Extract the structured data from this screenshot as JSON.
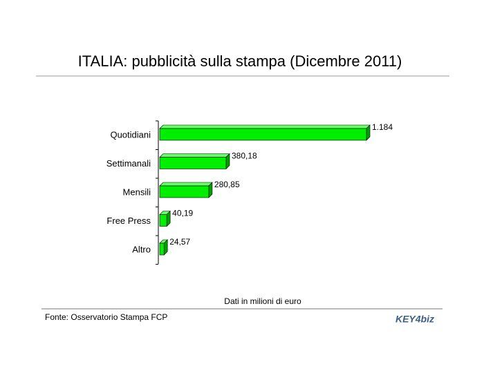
{
  "chart_data": {
    "type": "bar",
    "orientation": "horizontal",
    "title": "ITALIA: pubblicità sulla stampa (Dicembre 2011)",
    "categories": [
      "Quotidiani",
      "Settimanali",
      "Mensili",
      "Free Press",
      "Altro"
    ],
    "values": [
      1184,
      380.18,
      280.85,
      40.19,
      24.57
    ],
    "value_labels": [
      "1.184",
      "380,18",
      "280,85",
      "40,19",
      "24,57"
    ],
    "color": "#00ee00",
    "note": "Dati in milioni di euro",
    "source": "Fonte: Osservatorio Stampa FCP",
    "logo": "KEY4biz"
  }
}
